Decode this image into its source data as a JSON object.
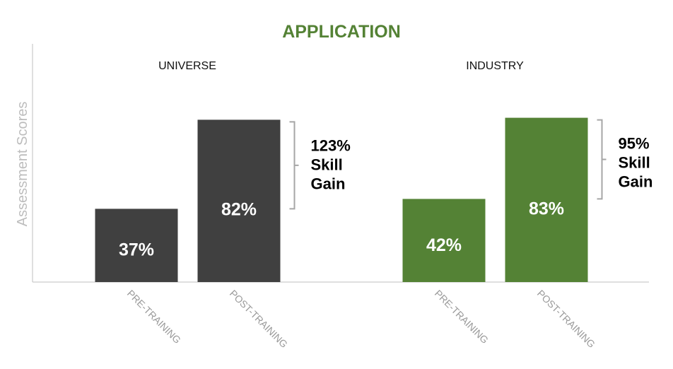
{
  "chart_data": {
    "type": "bar",
    "title": "APPLICATION",
    "ylabel": "Assessment Scores",
    "xlabel": "",
    "ylim": [
      0,
      100
    ],
    "grid": false,
    "legend": "none",
    "groups": [
      {
        "name": "UNIVERSE",
        "color": "#404040",
        "categories": [
          "PRE-TRAINING",
          "POST-TRAINING"
        ],
        "values": [
          37,
          82
        ],
        "value_labels": [
          "37%",
          "82%"
        ],
        "annotation": [
          "123%",
          "Skill",
          "Gain"
        ]
      },
      {
        "name": "INDUSTRY",
        "color": "#548235",
        "categories": [
          "PRE-TRAINING",
          "POST-TRAINING"
        ],
        "values": [
          42,
          83
        ],
        "value_labels": [
          "42%",
          "83%"
        ],
        "annotation": [
          "95%",
          "Skill",
          "Gain"
        ]
      }
    ]
  },
  "colors": {
    "title": "#548235",
    "axis": "#bfbfbf",
    "bracket": "#a6a6a6"
  }
}
